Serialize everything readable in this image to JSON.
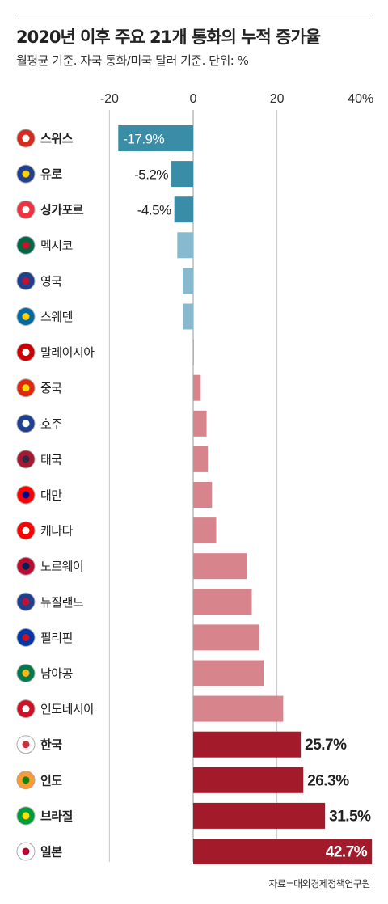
{
  "title": "2020년 이후 주요 21개 통화의 누적 증가율",
  "subtitle": "월평균 기준. 자국 통화/미국 달러 기준. 단위: %",
  "source": "자료=대외경제정책연구원",
  "colors": {
    "negative_highlight": "#3a8da6",
    "negative": "#87b9cf",
    "positive": "#d8848c",
    "positive_highlight": "#a31b2a"
  },
  "chart_data": {
    "type": "bar",
    "orientation": "horizontal",
    "x_ticks": [
      "-20",
      "0",
      "20",
      "40%"
    ],
    "xlim": [
      -20,
      43
    ],
    "grid": true,
    "categories": [
      "스위스",
      "유로",
      "싱가포르",
      "멕시코",
      "영국",
      "스웨덴",
      "말레이시아",
      "중국",
      "호주",
      "태국",
      "대만",
      "캐나다",
      "노르웨이",
      "뉴질랜드",
      "필리핀",
      "남아공",
      "인도네시아",
      "한국",
      "인도",
      "브라질",
      "일본"
    ],
    "values": [
      -17.9,
      -5.2,
      -4.5,
      -3.8,
      -2.5,
      -2.4,
      0.1,
      1.8,
      3.2,
      3.5,
      4.5,
      5.5,
      12.8,
      14.0,
      15.8,
      16.8,
      21.5,
      25.7,
      26.3,
      31.5,
      42.7
    ],
    "value_labels": [
      "-17.9%",
      "-5.2%",
      "-4.5%",
      "",
      "",
      "",
      "",
      "",
      "",
      "",
      "",
      "",
      "",
      "",
      "",
      "",
      "",
      "25.7%",
      "26.3%",
      "31.5%",
      "42.7%"
    ],
    "highlighted": [
      "스위스",
      "유로",
      "싱가포르",
      "한국",
      "인도",
      "브라질",
      "일본"
    ],
    "flags": [
      "switzerland-flag-icon",
      "eu-flag-icon",
      "singapore-flag-icon",
      "mexico-flag-icon",
      "uk-flag-icon",
      "sweden-flag-icon",
      "malaysia-flag-icon",
      "china-flag-icon",
      "australia-flag-icon",
      "thailand-flag-icon",
      "taiwan-flag-icon",
      "canada-flag-icon",
      "norway-flag-icon",
      "newzealand-flag-icon",
      "philippines-flag-icon",
      "southafrica-flag-icon",
      "indonesia-flag-icon",
      "korea-flag-icon",
      "india-flag-icon",
      "brazil-flag-icon",
      "japan-flag-icon"
    ]
  }
}
